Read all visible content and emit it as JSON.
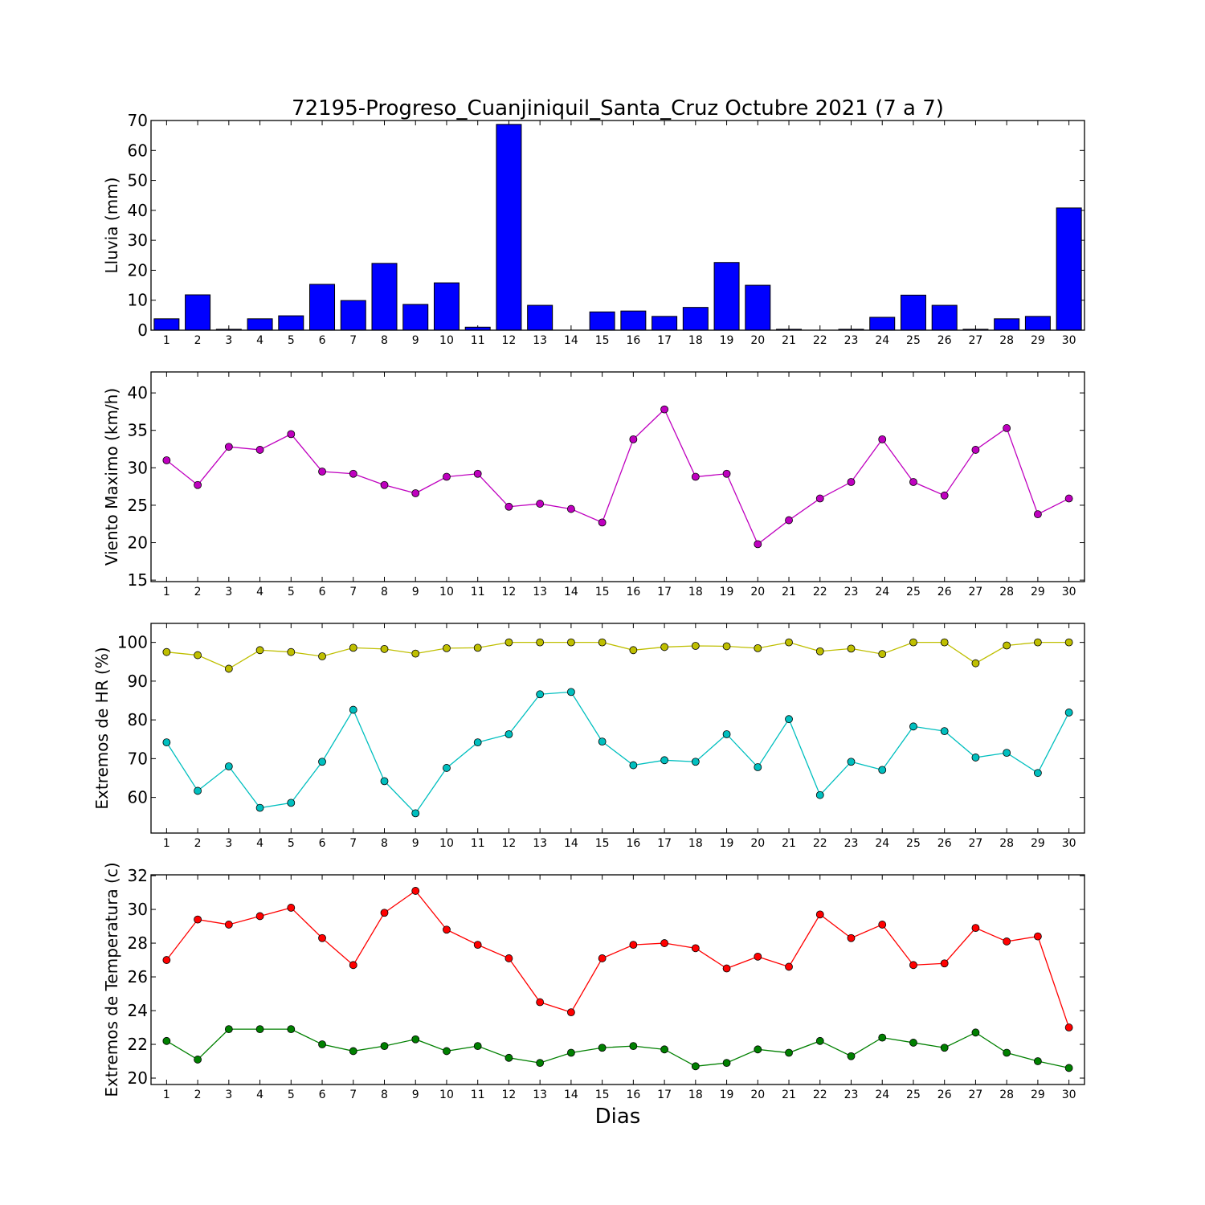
{
  "title": "72195-Progreso_Cuanjiniquil_Santa_Cruz Octubre 2021  (7 a 7)",
  "xlabel": "Dias",
  "days": [
    1,
    2,
    3,
    4,
    5,
    6,
    7,
    8,
    9,
    10,
    11,
    12,
    13,
    14,
    15,
    16,
    17,
    18,
    19,
    20,
    21,
    22,
    23,
    24,
    25,
    26,
    27,
    28,
    29,
    30
  ],
  "chart_data": [
    {
      "type": "bar",
      "ylabel": "Lluvia (mm)",
      "ylim": [
        0,
        70
      ],
      "yticks": [
        0,
        10,
        20,
        30,
        40,
        50,
        60,
        70
      ],
      "series": [
        {
          "color": "#0000ff",
          "values": [
            3.8,
            11.8,
            0.3,
            3.8,
            4.8,
            15.3,
            9.9,
            22.3,
            8.6,
            15.8,
            1.0,
            68.7,
            8.3,
            0.0,
            6.1,
            6.4,
            4.6,
            7.6,
            22.6,
            15.0,
            0.3,
            0.0,
            0.3,
            4.3,
            11.7,
            8.3,
            0.3,
            3.8,
            4.6,
            40.8
          ]
        }
      ]
    },
    {
      "type": "line",
      "ylabel": "Viento Maximo (km/h)",
      "ylim": [
        14.8,
        42.8
      ],
      "yticks": [
        15,
        20,
        25,
        30,
        35,
        40
      ],
      "series": [
        {
          "color": "#bf00bf",
          "values": [
            31.0,
            27.7,
            32.8,
            32.4,
            34.5,
            29.5,
            29.2,
            27.7,
            26.6,
            28.8,
            29.2,
            24.8,
            25.2,
            24.5,
            22.7,
            33.8,
            37.8,
            28.8,
            29.2,
            19.8,
            23.0,
            25.9,
            28.1,
            33.8,
            28.1,
            26.3,
            32.4,
            35.3,
            23.8,
            25.9
          ]
        }
      ]
    },
    {
      "type": "line",
      "ylabel": "Extremos de HR (%)",
      "ylim": [
        50.8,
        104.9
      ],
      "yticks": [
        60,
        70,
        80,
        90,
        100
      ],
      "series": [
        {
          "color": "#bfbf00",
          "values": [
            97.5,
            96.7,
            93.2,
            98.0,
            97.5,
            96.4,
            98.6,
            98.3,
            97.1,
            98.5,
            98.6,
            100,
            100,
            100,
            100,
            98.0,
            98.8,
            99.1,
            99.0,
            98.5,
            100,
            97.7,
            98.4,
            97.0,
            100,
            100,
            94.6,
            99.2,
            100,
            100
          ]
        },
        {
          "color": "#00bfbf",
          "values": [
            74.2,
            61.7,
            68.0,
            57.3,
            58.6,
            69.2,
            82.6,
            64.2,
            55.9,
            67.6,
            74.2,
            76.3,
            86.6,
            87.2,
            74.4,
            68.3,
            69.6,
            69.2,
            76.3,
            67.8,
            80.2,
            60.6,
            69.2,
            67.1,
            78.3,
            77.1,
            70.3,
            71.5,
            66.3,
            81.9
          ]
        }
      ]
    },
    {
      "type": "line",
      "ylabel": "Extremos de Temperatura (c)",
      "ylim": [
        19.62,
        32.05
      ],
      "yticks": [
        20,
        22,
        24,
        26,
        28,
        30,
        32
      ],
      "series": [
        {
          "color": "#ff0000",
          "values": [
            27.0,
            29.4,
            29.1,
            29.6,
            30.1,
            28.3,
            26.7,
            29.8,
            31.1,
            28.8,
            27.9,
            27.1,
            24.5,
            23.9,
            27.1,
            27.9,
            28.0,
            27.7,
            26.5,
            27.2,
            26.6,
            29.7,
            28.3,
            29.1,
            26.7,
            26.8,
            28.9,
            28.1,
            28.4,
            23.0
          ]
        },
        {
          "color": "#008000",
          "values": [
            22.2,
            21.1,
            22.9,
            22.9,
            22.9,
            22.0,
            21.6,
            21.9,
            22.3,
            21.6,
            21.9,
            21.2,
            20.9,
            21.5,
            21.8,
            21.9,
            21.7,
            20.7,
            20.9,
            21.7,
            21.5,
            22.2,
            21.3,
            22.4,
            22.1,
            21.8,
            22.7,
            21.5,
            21.0,
            20.6
          ]
        }
      ]
    }
  ]
}
